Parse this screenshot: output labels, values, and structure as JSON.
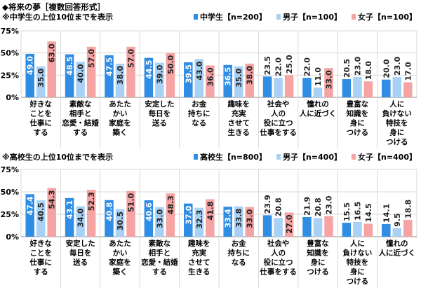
{
  "title": "◆将来の夢［複数回答形式］",
  "colors": {
    "total": "#2f8de4",
    "boys": "#a9d1f6",
    "girls": "#f5a3a3",
    "grid": "#d9d9d9"
  },
  "chart_data": [
    {
      "type": "bar",
      "subtitle": "※中学生の上位10位までを表示",
      "ylim": [
        0,
        75
      ],
      "yticks": [
        "0%",
        "25%",
        "50%",
        "75%"
      ],
      "ytick_values": [
        0,
        25,
        50,
        75
      ],
      "legend_position": "top-right",
      "categories": [
        [
          "好きな",
          "ことを",
          "仕事に",
          "する"
        ],
        [
          "素敵な",
          "相手と",
          "恋愛・結婚",
          "する"
        ],
        [
          "あたた",
          "かい",
          "家庭を",
          "築く"
        ],
        [
          "安定した",
          "毎日を",
          "送る"
        ],
        [
          "お金",
          "持ちに",
          "なる"
        ],
        [
          "趣味を",
          "充実",
          "させて",
          "生きる"
        ],
        [
          "社会や",
          "人の",
          "役に立つ",
          "仕事をする"
        ],
        [
          "憧れの",
          "人に近づく"
        ],
        [
          "豊富な",
          "知識を",
          "身に",
          "つける"
        ],
        [
          "人に",
          "負けない",
          "特技を",
          "身に",
          "つける"
        ]
      ],
      "series": [
        {
          "name": "中学生【n=200】",
          "values": [
            49.0,
            48.5,
            47.5,
            44.5,
            39.5,
            36.5,
            23.5,
            22.0,
            20.5,
            20.0
          ]
        },
        {
          "name": "男子【n=100】",
          "values": [
            35.0,
            40.0,
            38.0,
            39.0,
            43.0,
            35.0,
            22.0,
            11.0,
            23.0,
            23.0
          ]
        },
        {
          "name": "女子【n=100】",
          "values": [
            63.0,
            57.0,
            57.0,
            50.0,
            36.0,
            38.0,
            25.0,
            33.0,
            18.0,
            17.0
          ]
        }
      ]
    },
    {
      "type": "bar",
      "subtitle": "※高校生の上位10位までを表示",
      "ylim": [
        0,
        75
      ],
      "yticks": [
        "0%",
        "25%",
        "50%",
        "75%"
      ],
      "ytick_values": [
        0,
        25,
        50,
        75
      ],
      "legend_position": "top-right",
      "categories": [
        [
          "好きな",
          "ことを",
          "仕事に",
          "する"
        ],
        [
          "安定した",
          "毎日を",
          "送る"
        ],
        [
          "あたた",
          "かい",
          "家庭を",
          "築く"
        ],
        [
          "素敵な",
          "相手と",
          "恋愛・結婚",
          "する"
        ],
        [
          "趣味を",
          "充実",
          "させて",
          "生きる"
        ],
        [
          "お金",
          "持ちに",
          "なる"
        ],
        [
          "社会や",
          "人の",
          "役に立つ",
          "仕事をする"
        ],
        [
          "豊富な",
          "知識を",
          "身に",
          "つける"
        ],
        [
          "人に",
          "負けない",
          "特技を",
          "身に",
          "つける"
        ],
        [
          "憧れの",
          "人に近づく"
        ]
      ],
      "series": [
        {
          "name": "高校生【n=800】",
          "values": [
            47.4,
            43.1,
            40.8,
            40.6,
            37.0,
            33.4,
            23.9,
            21.9,
            15.5,
            14.1
          ]
        },
        {
          "name": "男子【n=400】",
          "values": [
            40.5,
            34.0,
            30.5,
            33.0,
            32.3,
            33.8,
            20.8,
            20.8,
            16.5,
            9.5
          ]
        },
        {
          "name": "女子【n=400】",
          "values": [
            54.3,
            52.3,
            51.0,
            48.3,
            41.8,
            33.0,
            27.0,
            23.0,
            14.5,
            18.8
          ]
        }
      ]
    }
  ]
}
